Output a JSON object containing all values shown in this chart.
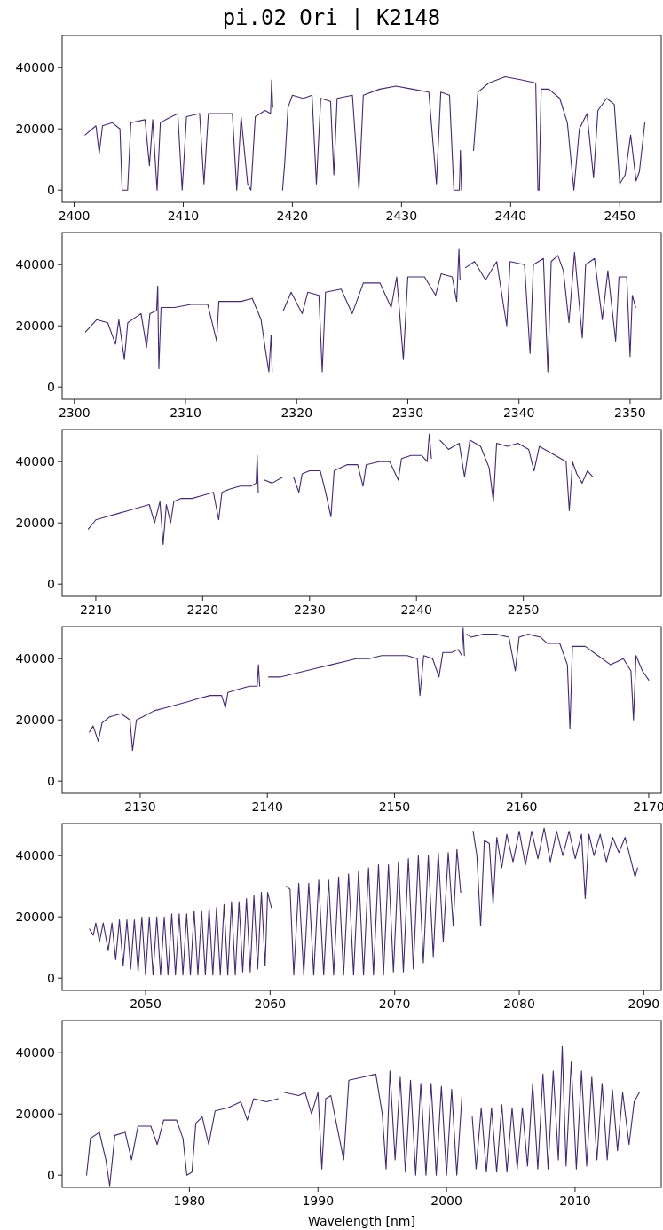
{
  "chart_data": [
    {
      "type": "line",
      "title": "pi.02 Ori | K2148",
      "xlim": [
        2398.9,
        2453.8
      ],
      "xticks": [
        2400,
        2410,
        2420,
        2430,
        2440,
        2450
      ],
      "ylim": [
        -4000,
        50500
      ],
      "yticks": [
        0,
        20000,
        40000
      ],
      "grid": false,
      "color": "#45277a",
      "x": [
        2401,
        2402,
        2402.3,
        2402.6,
        2403.5,
        2404.2,
        2404.4,
        2404.9,
        2405.2,
        2406.5,
        2406.9,
        2407.2,
        2407.6,
        2407.9,
        2408.4,
        2409.5,
        2409.9,
        2410.3,
        2411.5,
        2411.9,
        2412.3,
        2413.5,
        2414.5,
        2414.9,
        2415.3,
        2415.9,
        2416.2,
        2416.6,
        2417.5,
        2418,
        2418.1,
        2418.2,
        2418.6,
        2419.1,
        2419.3,
        2419.6,
        2420,
        2421,
        2421.8,
        2422.2,
        2422.6,
        2423.5,
        2423.8,
        2424.1,
        2425.5,
        2426.1,
        2426.5,
        2428,
        2429.5,
        2431,
        2432.5,
        2433.2,
        2433.6,
        2434.4,
        2434.8,
        2435.3,
        2435.4,
        2435.5,
        2436,
        2436.6,
        2437,
        2438,
        2439.5,
        2441,
        2442.3,
        2442.5,
        2442.6,
        2442.8,
        2443.5,
        2444.5,
        2445.2,
        2445.8,
        2446.3,
        2447,
        2447.6,
        2448,
        2448.8,
        2449.5,
        2450,
        2450.5,
        2451,
        2451.5,
        2451.8,
        2452.3
      ],
      "values": [
        18000,
        21000,
        12000,
        21000,
        22000,
        20000,
        0,
        0,
        22000,
        23000,
        8000,
        23000,
        0,
        22000,
        23000,
        25000,
        0,
        24000,
        25000,
        2000,
        25000,
        25000,
        25000,
        0,
        24000,
        2000,
        0,
        24000,
        26000,
        25000,
        36000,
        27000,
        null,
        0,
        9000,
        27000,
        31000,
        30000,
        31000,
        2000,
        30000,
        29000,
        5000,
        30000,
        31000,
        0,
        31000,
        33000,
        34000,
        33000,
        32000,
        2000,
        32000,
        31000,
        0,
        0,
        13000,
        0,
        null,
        13000,
        32000,
        35000,
        37000,
        36000,
        35000,
        0,
        0,
        33000,
        33000,
        30000,
        22000,
        0,
        20000,
        25000,
        4000,
        26000,
        30000,
        28000,
        2000,
        5000,
        18000,
        3000,
        6000,
        22000
      ]
    },
    {
      "type": "line",
      "xlim": [
        2298.9,
        2352.8
      ],
      "xticks": [
        2300,
        2310,
        2320,
        2330,
        2340,
        2350
      ],
      "ylim": [
        -4000,
        50500
      ],
      "yticks": [
        0,
        20000,
        40000
      ],
      "grid": false,
      "color": "#45277a",
      "x": [
        2301,
        2302,
        2303,
        2303.7,
        2304,
        2304.5,
        2304.8,
        2306,
        2306.5,
        2306.8,
        2307.4,
        2307.5,
        2307.6,
        2307.8,
        2309,
        2310.5,
        2312,
        2312.8,
        2313,
        2315,
        2316,
        2316.8,
        2317.2,
        2317.5,
        2317.7,
        2317.8,
        2318.3,
        2318.8,
        2319.5,
        2320.5,
        2321,
        2322,
        2322.3,
        2322.6,
        2324,
        2325,
        2326,
        2327.5,
        2328.5,
        2329,
        2329.6,
        2330,
        2331.5,
        2332.5,
        2333,
        2334,
        2334.4,
        2334.6,
        2334.7,
        2334.95,
        2335.2,
        2336,
        2337,
        2338,
        2338.9,
        2339.2,
        2340.5,
        2341,
        2341.3,
        2342.2,
        2342.6,
        2342.9,
        2343.5,
        2344,
        2344.5,
        2345,
        2345.7,
        2346,
        2346.8,
        2347.5,
        2348,
        2348.7,
        2349,
        2349.7,
        2350,
        2350.2,
        2350.5
      ],
      "values": [
        18000,
        22000,
        21000,
        14000,
        22000,
        9000,
        21000,
        24000,
        13000,
        24000,
        25000,
        33000,
        6000,
        26000,
        26000,
        27000,
        27000,
        15000,
        28000,
        28000,
        29000,
        22000,
        12000,
        5000,
        17000,
        5000,
        null,
        25000,
        31000,
        24000,
        31000,
        30000,
        5000,
        31000,
        32000,
        24000,
        34000,
        34000,
        26000,
        36000,
        9000,
        36000,
        36000,
        30000,
        37000,
        36000,
        28000,
        45000,
        35000,
        null,
        39000,
        41000,
        35000,
        41000,
        20000,
        41000,
        40000,
        11000,
        40000,
        42000,
        5000,
        41000,
        43000,
        38000,
        21000,
        44000,
        16000,
        40000,
        42000,
        22000,
        38000,
        15000,
        36000,
        36000,
        10000,
        30000,
        26000
      ]
    },
    {
      "type": "line",
      "xlim": [
        2206.85,
        2262.9
      ],
      "xticks": [
        2210,
        2220,
        2230,
        2240,
        2250
      ],
      "ylim": [
        -4000,
        50500
      ],
      "yticks": [
        0,
        20000,
        40000
      ],
      "grid": false,
      "color": "#45277a",
      "x": [
        2209.3,
        2210,
        2211,
        2212,
        2213,
        2214,
        2215,
        2215.5,
        2216,
        2216.3,
        2216.6,
        2217,
        2217.3,
        2218,
        2219,
        2220,
        2221,
        2221.5,
        2221.8,
        2222.5,
        2223.5,
        2224.5,
        2225,
        2225.1,
        2225.2,
        2225.5,
        2225.8,
        2226.5,
        2227.5,
        2228.5,
        2229,
        2229.3,
        2230,
        2231,
        2231.5,
        2232,
        2232.3,
        2233.5,
        2234.5,
        2235,
        2235.3,
        2236.5,
        2237.5,
        2238.3,
        2238.6,
        2239.5,
        2240.5,
        2241,
        2241.2,
        2241.4,
        2241.8,
        2242.2,
        2243,
        2244,
        2244.5,
        2245,
        2246,
        2246.8,
        2247.2,
        2247.5,
        2248.5,
        2249.5,
        2250.5,
        2251,
        2251.5,
        2252,
        2253,
        2254,
        2254.3,
        2254.6,
        2255,
        2255.5,
        2256,
        2256.5
      ],
      "values": [
        18000,
        21000,
        22000,
        23000,
        24000,
        25000,
        26000,
        20000,
        27000,
        13000,
        26000,
        20000,
        27000,
        28000,
        28000,
        29000,
        30000,
        21000,
        30000,
        31000,
        32000,
        32000,
        33000,
        42000,
        30000,
        null,
        34000,
        33000,
        35000,
        35000,
        30000,
        36000,
        37000,
        37000,
        30000,
        22000,
        37000,
        39000,
        39000,
        32000,
        39000,
        40000,
        40000,
        34000,
        41000,
        42000,
        42000,
        40000,
        49000,
        41000,
        null,
        47000,
        44000,
        46000,
        35000,
        47000,
        45000,
        38000,
        27000,
        46000,
        45000,
        46000,
        44000,
        37000,
        45000,
        44000,
        42000,
        40000,
        24000,
        40000,
        36000,
        33000,
        37000,
        35000
      ]
    },
    {
      "type": "line",
      "xlim": [
        2123.86,
        2170.98
      ],
      "xticks": [
        2130,
        2140,
        2150,
        2160,
        2170
      ],
      "ylim": [
        -4000,
        50500
      ],
      "yticks": [
        0,
        20000,
        40000
      ],
      "grid": false,
      "color": "#45277a",
      "x": [
        2126,
        2126.3,
        2126.7,
        2127,
        2127.6,
        2128.5,
        2129.2,
        2129.4,
        2129.7,
        2130.2,
        2131.1,
        2132,
        2132.9,
        2133.8,
        2134.6,
        2135.5,
        2136.4,
        2136.7,
        2136.9,
        2137.7,
        2138.6,
        2139.2,
        2139.3,
        2139.4,
        2139.7,
        2140.1,
        2141,
        2142,
        2143,
        2144,
        2145,
        2146,
        2147,
        2148,
        2149,
        2150,
        2151,
        2151.8,
        2152,
        2152.3,
        2153,
        2153.5,
        2153.8,
        2154.5,
        2155,
        2155.3,
        2155.4,
        2155.5,
        2155.6,
        2155.7,
        2156,
        2157,
        2158,
        2159,
        2159.5,
        2159.8,
        2160.5,
        2161.5,
        2162,
        2163,
        2163.6,
        2163.8,
        2164,
        2165,
        2166,
        2167,
        2168,
        2168.6,
        2168.8,
        2169,
        2169.5,
        2170
      ],
      "values": [
        16000,
        18000,
        13000,
        19000,
        21000,
        22000,
        20000,
        10000,
        20000,
        21000,
        23000,
        24000,
        25000,
        26000,
        27000,
        28000,
        28000,
        24000,
        29000,
        30000,
        31000,
        31000,
        38000,
        31000,
        null,
        34000,
        34000,
        35000,
        36000,
        37000,
        38000,
        39000,
        40000,
        40000,
        41000,
        41000,
        41000,
        40000,
        28000,
        41000,
        40000,
        34000,
        42000,
        42000,
        43000,
        41000,
        50000,
        41000,
        null,
        48000,
        47000,
        48000,
        48000,
        47000,
        36000,
        47000,
        48000,
        47000,
        45000,
        45000,
        38000,
        17000,
        44000,
        44000,
        41000,
        38000,
        40000,
        36000,
        20000,
        41000,
        36000,
        33000
      ]
    },
    {
      "type": "line",
      "xlim": [
        2043.3,
        2091.4
      ],
      "xticks": [
        2050,
        2060,
        2070,
        2080,
        2090
      ],
      "ylim": [
        -4000,
        50500
      ],
      "yticks": [
        0,
        20000,
        40000
      ],
      "grid": false,
      "color": "#45277a",
      "x": [
        2045.5,
        2045.8,
        2046,
        2046.3,
        2046.6,
        2047,
        2047.3,
        2047.6,
        2047.9,
        2048.2,
        2048.5,
        2048.8,
        2049.1,
        2049.4,
        2049.7,
        2050,
        2050.3,
        2050.6,
        2050.9,
        2051.2,
        2051.5,
        2051.8,
        2052.1,
        2052.4,
        2052.7,
        2053,
        2053.3,
        2053.6,
        2053.9,
        2054.2,
        2054.5,
        2054.8,
        2055.1,
        2055.4,
        2055.7,
        2056,
        2056.3,
        2056.6,
        2056.9,
        2057.2,
        2057.5,
        2057.8,
        2058.1,
        2058.4,
        2058.7,
        2059,
        2059.3,
        2059.6,
        2059.8,
        2060.1,
        2060.7,
        2061.3,
        2061.6,
        2061.9,
        2062.3,
        2062.7,
        2063.1,
        2063.5,
        2063.9,
        2064.3,
        2064.7,
        2065.1,
        2065.5,
        2065.9,
        2066.3,
        2066.7,
        2067.1,
        2067.5,
        2067.9,
        2068.3,
        2068.7,
        2069.1,
        2069.5,
        2069.9,
        2070.3,
        2070.7,
        2071.1,
        2071.5,
        2071.9,
        2072.3,
        2072.7,
        2073.1,
        2073.5,
        2073.9,
        2074.3,
        2074.7,
        2075,
        2075.3,
        2075.8,
        2076.3,
        2076.6,
        2076.9,
        2077.2,
        2077.6,
        2077.9,
        2078.2,
        2078.6,
        2079,
        2079.5,
        2080,
        2080.5,
        2081,
        2081.5,
        2082,
        2082.5,
        2083,
        2083.5,
        2084,
        2084.5,
        2085,
        2085.3,
        2085.6,
        2086,
        2086.5,
        2087,
        2087.5,
        2088,
        2088.5,
        2089,
        2089.3,
        2089.5
      ],
      "values": [
        16000,
        14000,
        18000,
        12000,
        18000,
        9000,
        18000,
        6000,
        19000,
        4000,
        19000,
        3000,
        19000,
        2000,
        20000,
        1000,
        20000,
        1000,
        20000,
        1000,
        20000,
        1000,
        21000,
        1000,
        21000,
        1000,
        21000,
        1000,
        22000,
        1000,
        22000,
        1000,
        23000,
        1000,
        23000,
        1000,
        24000,
        1000,
        25000,
        1000,
        25000,
        2000,
        26000,
        2000,
        27000,
        3000,
        28000,
        4000,
        28000,
        23000,
        null,
        30000,
        29000,
        1000,
        31000,
        1000,
        31000,
        1000,
        32000,
        1000,
        32000,
        1000,
        33000,
        1000,
        34000,
        1000,
        35000,
        1000,
        36000,
        1000,
        37000,
        1000,
        37000,
        2000,
        38000,
        2000,
        39000,
        3000,
        40000,
        5000,
        40000,
        7000,
        41000,
        12000,
        41000,
        17000,
        42000,
        28000,
        null,
        48000,
        40000,
        17000,
        45000,
        44000,
        24000,
        46000,
        36000,
        47000,
        38000,
        48000,
        37000,
        48000,
        39000,
        49000,
        38000,
        48000,
        40000,
        48000,
        39000,
        47000,
        26000,
        47000,
        40000,
        47000,
        38000,
        46000,
        41000,
        46000,
        38000,
        33000,
        36000
      ]
    },
    {
      "type": "line",
      "xlabel": "Wavelength [nm]",
      "xlim": [
        1970.1,
        2016.7
      ],
      "xticks": [
        1980,
        1990,
        2000,
        2010
      ],
      "ylim": [
        -4000,
        50500
      ],
      "yticks": [
        0,
        20000,
        40000
      ],
      "grid": false,
      "color": "#45277a",
      "x": [
        1972,
        1972.3,
        1973,
        1973.5,
        1973.8,
        1974.2,
        1975,
        1975.5,
        1976,
        1977,
        1977.5,
        1978,
        1979,
        1979.5,
        1979.8,
        1980.2,
        1980.5,
        1981,
        1981.5,
        1982,
        1983,
        1984,
        1984.5,
        1985,
        1986,
        1986.9,
        1987.15,
        1987.4,
        1988.5,
        1989,
        1989.5,
        1990,
        1990.3,
        1990.6,
        1991,
        1992,
        1992.4,
        1993.5,
        1994.5,
        1995,
        1995.3,
        1995.6,
        1996,
        1996.4,
        1996.8,
        1997.2,
        1997.6,
        1998,
        1998.4,
        1998.8,
        1999.2,
        1999.6,
        2000,
        2000.4,
        2000.8,
        2001.2,
        2001.6,
        2002,
        2002.3,
        2002.7,
        2003.1,
        2003.5,
        2003.9,
        2004.3,
        2004.7,
        2005.1,
        2005.5,
        2005.9,
        2006.3,
        2006.7,
        2007.1,
        2007.5,
        2007.9,
        2008.3,
        2008.7,
        2009,
        2009.3,
        2009.7,
        2010.1,
        2010.5,
        2010.9,
        2011.3,
        2011.7,
        2012.1,
        2012.5,
        2012.9,
        2013.3,
        2013.7,
        2014.2,
        2014.6,
        2015
      ],
      "values": [
        0,
        12000,
        14000,
        5000,
        -3500,
        13000,
        14000,
        5000,
        16000,
        16000,
        10000,
        18000,
        18000,
        12000,
        0,
        1000,
        17000,
        19000,
        10000,
        21000,
        22000,
        24000,
        18000,
        25000,
        24000,
        25000,
        null,
        27000,
        26000,
        27000,
        20000,
        27000,
        2000,
        25000,
        26000,
        5000,
        31000,
        32000,
        33000,
        20000,
        2000,
        34000,
        5000,
        32000,
        1000,
        31000,
        0,
        30000,
        0,
        30000,
        0,
        29000,
        0,
        28000,
        0,
        26000,
        null,
        19000,
        2000,
        22000,
        1000,
        22000,
        1000,
        23000,
        1000,
        22000,
        2000,
        22000,
        3000,
        30000,
        2000,
        33000,
        2000,
        34000,
        5000,
        42000,
        3000,
        37000,
        2000,
        34000,
        3000,
        32000,
        5000,
        30000,
        5000,
        28000,
        8000,
        27000,
        10000,
        24000,
        27000
      ]
    }
  ]
}
